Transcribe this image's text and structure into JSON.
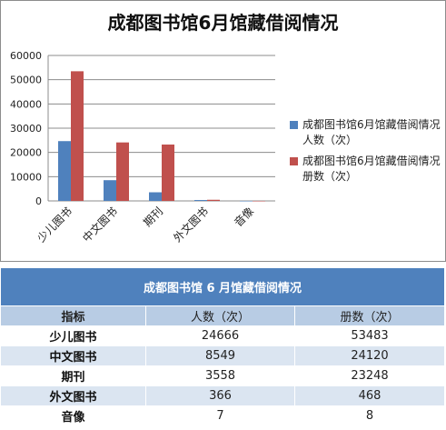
{
  "chart_data": {
    "type": "bar",
    "title": "成都图书馆6月馆藏借阅情况",
    "categories": [
      "少儿图书",
      "中文图书",
      "期刊",
      "外文图书",
      "音像"
    ],
    "series": [
      {
        "name": "成都图书馆6月馆藏借阅情况 人数（次）",
        "values": [
          24666,
          8549,
          3558,
          366,
          7
        ],
        "color": "#4f81bd"
      },
      {
        "name": "成都图书馆6月馆藏借阅情况 册数（次）",
        "values": [
          53483,
          24120,
          23248,
          468,
          8
        ],
        "color": "#c0504d"
      }
    ],
    "ylim": [
      0,
      60000
    ],
    "yticks": [
      "0",
      "10000",
      "20000",
      "30000",
      "40000",
      "50000",
      "60000"
    ],
    "grid": true,
    "legend_position": "right"
  },
  "table": {
    "title": "成都图书馆 6 月馆藏借阅情况",
    "headers": [
      "指标",
      "人数（次）",
      "册数（次）"
    ],
    "rows": [
      [
        "少儿图书",
        "24666",
        "53483"
      ],
      [
        "中文图书",
        "8549",
        "24120"
      ],
      [
        "期刊",
        "3558",
        "23248"
      ],
      [
        "外文图书",
        "366",
        "468"
      ],
      [
        "音像",
        "7",
        "8"
      ]
    ]
  }
}
